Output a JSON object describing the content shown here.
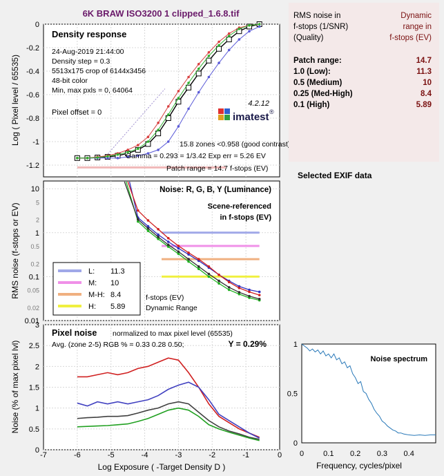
{
  "figure_title": "6K BRAW ISO3200 1 clipped_1.6.8.tif",
  "chart_data": [
    {
      "type": "line",
      "title": "Density response",
      "ylabel": "Log ( Pixel level / 65535)",
      "xlim": [
        -7,
        0
      ],
      "ylim": [
        -1.3,
        0
      ],
      "yticks": [
        0,
        -0.2,
        -0.4,
        -0.6,
        -0.8,
        -1,
        -1.2
      ],
      "info_lines": [
        "24-Aug-2019 21:44:00",
        "Density step = 0.3",
        "5513x175 crop of 6144x3456",
        "48-bit color",
        "Min, max pxls = 0, 64064"
      ],
      "pixel_offset": "Pixel offset = 0",
      "version": "4.2.12",
      "brand": "imatest",
      "annotations": [
        "15.8 zones <0.958 (good contrast)",
        "Gamma = 0.293 = 1/3.42  Exp err = 5.26 EV",
        "Patch range = 14.7 f-stops (EV)"
      ],
      "x": [
        -6,
        -5.7,
        -5.4,
        -5.1,
        -4.8,
        -4.5,
        -4.2,
        -3.9,
        -3.6,
        -3.3,
        -3.0,
        -2.7,
        -2.4,
        -2.1,
        -1.8,
        -1.5,
        -1.2,
        -0.9,
        -0.6
      ],
      "series": [
        {
          "color": "#000000",
          "values": [
            -1.14,
            -1.14,
            -1.135,
            -1.13,
            -1.12,
            -1.1,
            -1.07,
            -1.02,
            -0.93,
            -0.8,
            -0.66,
            -0.54,
            -0.42,
            -0.31,
            -0.21,
            -0.13,
            -0.06,
            -0.02,
            0
          ]
        },
        {
          "color": "#5a5ad8",
          "values": [
            -1.14,
            -1.14,
            -1.14,
            -1.14,
            -1.14,
            -1.13,
            -1.12,
            -1.1,
            -1.07,
            -1.0,
            -0.87,
            -0.72,
            -0.58,
            -0.45,
            -0.33,
            -0.22,
            -0.13,
            -0.06,
            -0.02
          ]
        },
        {
          "color": "#d84040",
          "values": [
            -1.14,
            -1.14,
            -1.13,
            -1.12,
            -1.1,
            -1.07,
            -1.03,
            -0.96,
            -0.84,
            -0.7,
            -0.57,
            -0.45,
            -0.34,
            -0.24,
            -0.15,
            -0.08,
            -0.03,
            -0.01,
            0
          ]
        },
        {
          "color": "#30b030",
          "values": [
            -1.14,
            -1.14,
            -1.135,
            -1.125,
            -1.11,
            -1.09,
            -1.06,
            -1.0,
            -0.9,
            -0.77,
            -0.63,
            -0.5,
            -0.38,
            -0.27,
            -0.18,
            -0.1,
            -0.04,
            -0.01,
            0
          ]
        }
      ]
    },
    {
      "type": "line",
      "title": "Noise: R, G, B, Y (Luminance)",
      "subtitle": "Scene-referenced in f-stops (EV)",
      "ylabel": "RMS noise (f-stops or EV)",
      "scale": "log",
      "xlim": [
        -7,
        0
      ],
      "ylim": [
        0.01,
        15
      ],
      "yticks": [
        "10",
        "1",
        "0.1",
        "0.01"
      ],
      "minor_ticks": [
        "5",
        "2",
        "0.5",
        "0.2",
        "0.05",
        "0.02"
      ],
      "legend": [
        {
          "label": "L:",
          "value": "11.3",
          "color": "#a0a8e8"
        },
        {
          "label": "M:",
          "value": "10",
          "color": "#f090e8"
        },
        {
          "label": "M-H:",
          "value": "8.4",
          "color": "#f0b080"
        },
        {
          "label": "H:",
          "value": "5.89",
          "color": "#f0f040"
        }
      ],
      "levels": [
        {
          "value": 1,
          "color": "#a0a8e8"
        },
        {
          "value": 0.5,
          "color": "#f090e8"
        },
        {
          "value": 0.25,
          "color": "#f0b080"
        },
        {
          "value": 0.1,
          "color": "#f0f040"
        }
      ],
      "footer": [
        "f-stops (EV)",
        "Dynamic Range"
      ],
      "x": [
        -4.2,
        -3.9,
        -3.6,
        -3.3,
        -3.0,
        -2.7,
        -2.4,
        -2.1,
        -1.8,
        -1.5,
        -1.2,
        -0.9,
        -0.6
      ],
      "series": [
        {
          "color": "#3030c0",
          "values": [
            2.2,
            1.4,
            0.9,
            0.62,
            0.44,
            0.32,
            0.23,
            0.16,
            0.11,
            0.08,
            0.06,
            0.05,
            0.045
          ]
        },
        {
          "color": "#d02020",
          "values": [
            3.2,
            1.9,
            1.2,
            0.75,
            0.5,
            0.35,
            0.25,
            0.17,
            0.11,
            0.075,
            0.055,
            0.045,
            0.038
          ]
        },
        {
          "color": "#20b020",
          "values": [
            1.8,
            1.1,
            0.72,
            0.48,
            0.33,
            0.22,
            0.15,
            0.1,
            0.07,
            0.05,
            0.04,
            0.033,
            0.029
          ]
        },
        {
          "color": "#303030",
          "values": [
            2.0,
            1.25,
            0.8,
            0.53,
            0.37,
            0.25,
            0.17,
            0.115,
            0.08,
            0.057,
            0.044,
            0.036,
            0.031
          ]
        }
      ],
      "extra_x": [
        -6,
        -5.7,
        -5.4,
        -5.1,
        -4.8,
        -4.5
      ]
    },
    {
      "type": "line",
      "title": "Pixel noise",
      "subtitle": "normalized to max pixel level (65535)",
      "avg_text": "Avg. (zone 2-5) RGB % = 0.33  0.28  0.50;",
      "y_text": "Y = 0.29%",
      "xlabel": "Log Exposure ( -Target Density D )",
      "ylabel": "Noise (% of max pixel lvl)",
      "xlim": [
        -7,
        0
      ],
      "ylim": [
        0,
        3
      ],
      "xticks": [
        -7,
        -6,
        -5,
        -4,
        -3,
        -2,
        -1,
        0
      ],
      "yticks": [
        0,
        0.5,
        1,
        1.5,
        2,
        2.5,
        3
      ],
      "x": [
        -6,
        -5.7,
        -5.4,
        -5.1,
        -4.8,
        -4.5,
        -4.2,
        -3.9,
        -3.6,
        -3.3,
        -3.0,
        -2.7,
        -2.4,
        -2.1,
        -1.8,
        -1.5,
        -1.2,
        -0.9,
        -0.6
      ],
      "series": [
        {
          "color": "#d02020",
          "values": [
            1.75,
            1.75,
            1.8,
            1.85,
            1.8,
            1.85,
            1.95,
            2.0,
            2.1,
            2.2,
            2.15,
            1.85,
            1.5,
            1.1,
            0.8,
            0.65,
            0.5,
            0.4,
            0.3
          ]
        },
        {
          "color": "#4040c0",
          "values": [
            1.12,
            1.05,
            1.15,
            1.1,
            1.15,
            1.1,
            1.15,
            1.2,
            1.3,
            1.45,
            1.55,
            1.62,
            1.5,
            1.2,
            0.85,
            0.7,
            0.55,
            0.4,
            0.28
          ]
        },
        {
          "color": "#404040",
          "values": [
            0.75,
            0.77,
            0.78,
            0.8,
            0.8,
            0.82,
            0.88,
            0.95,
            1.0,
            1.1,
            1.15,
            1.1,
            0.9,
            0.7,
            0.55,
            0.45,
            0.38,
            0.3,
            0.25
          ]
        },
        {
          "color": "#20a020",
          "values": [
            0.55,
            0.56,
            0.57,
            0.58,
            0.6,
            0.62,
            0.68,
            0.75,
            0.85,
            0.95,
            1.0,
            0.95,
            0.8,
            0.6,
            0.5,
            0.42,
            0.35,
            0.28,
            0.22
          ]
        }
      ]
    },
    {
      "type": "line",
      "title": "Noise spectrum",
      "xlabel": "Frequency, cycles/pixel",
      "xlim": [
        0,
        0.5
      ],
      "ylim": [
        0,
        1
      ],
      "xticks": [
        0,
        0.1,
        0.2,
        0.3,
        0.4
      ],
      "yticks": [
        0,
        0.5,
        1
      ],
      "color": "#2878b8",
      "x": [
        0,
        0.01,
        0.02,
        0.03,
        0.04,
        0.05,
        0.06,
        0.07,
        0.08,
        0.09,
        0.1,
        0.11,
        0.12,
        0.13,
        0.14,
        0.15,
        0.16,
        0.17,
        0.18,
        0.19,
        0.2,
        0.21,
        0.22,
        0.23,
        0.24,
        0.25,
        0.26,
        0.27,
        0.28,
        0.29,
        0.3,
        0.31,
        0.32,
        0.33,
        0.34,
        0.35,
        0.36,
        0.37,
        0.38,
        0.39,
        0.4,
        0.42,
        0.44,
        0.46,
        0.48,
        0.5
      ],
      "values": [
        1.0,
        0.98,
        0.96,
        0.93,
        0.95,
        0.92,
        0.94,
        0.9,
        0.93,
        0.88,
        0.9,
        0.86,
        0.9,
        0.84,
        0.86,
        0.8,
        0.82,
        0.76,
        0.78,
        0.7,
        0.66,
        0.6,
        0.62,
        0.52,
        0.5,
        0.44,
        0.4,
        0.34,
        0.3,
        0.27,
        0.22,
        0.2,
        0.17,
        0.15,
        0.13,
        0.12,
        0.1,
        0.1,
        0.09,
        0.085,
        0.08,
        0.075,
        0.08,
        0.075,
        0.08,
        0.08
      ]
    }
  ],
  "results": {
    "header_left": [
      "RMS noise in",
      "f-stops (1/SNR)",
      "(Quality)"
    ],
    "header_right": [
      "Dynamic",
      "range in",
      "f-stops (EV)"
    ],
    "rows": [
      {
        "label": "Patch range:",
        "value": "14.7"
      },
      {
        "label": "1.0   (Low):",
        "value": "11.3"
      },
      {
        "label": "0.5   (Medium)",
        "value": "10"
      },
      {
        "label": "0.25 (Med-High)",
        "value": "8.4"
      },
      {
        "label": "0.1   (High)",
        "value": "5.89"
      }
    ]
  },
  "exif_title": "Selected EXIF data"
}
